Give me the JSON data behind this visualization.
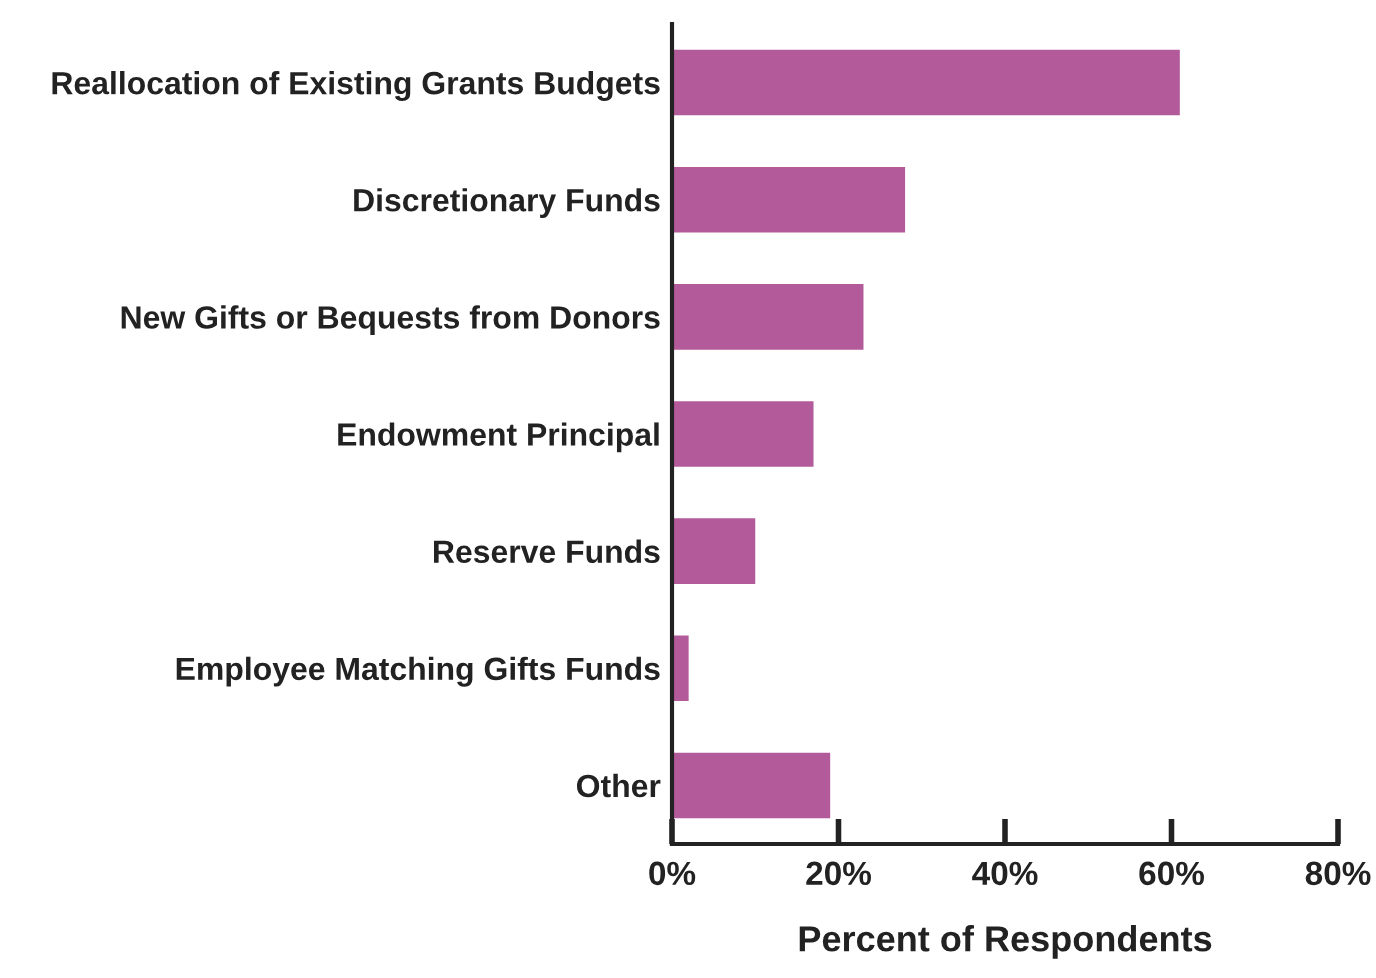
{
  "chart_data": {
    "type": "bar",
    "orientation": "horizontal",
    "xlabel": "Percent of Respondents",
    "categories": [
      "Reallocation of Existing Grants Budgets",
      "Discretionary Funds",
      "New Gifts or Bequests from Donors",
      "Endowment Principal",
      "Reserve Funds",
      "Employee Matching Gifts Funds",
      "Other"
    ],
    "values": [
      61,
      28,
      23,
      17,
      10,
      2,
      19
    ],
    "color": "#b35a9a",
    "xlim": [
      0,
      80
    ],
    "xticks": [
      {
        "value": 0,
        "label": "0%"
      },
      {
        "value": 20,
        "label": "20%"
      },
      {
        "value": 40,
        "label": "40%"
      },
      {
        "value": 60,
        "label": "60%"
      },
      {
        "value": 80,
        "label": "80%"
      }
    ],
    "grid": false,
    "legend": false
  }
}
